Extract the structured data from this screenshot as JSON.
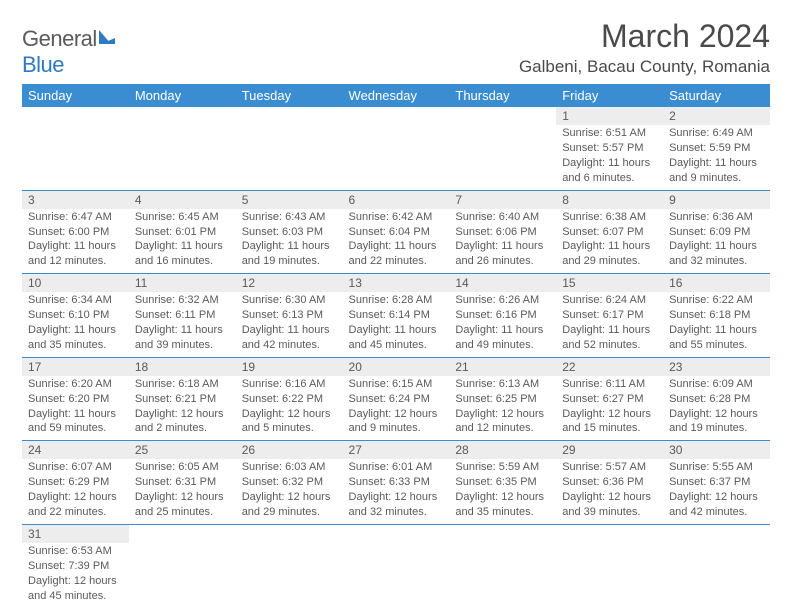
{
  "logo": {
    "text_a": "General",
    "text_b": "Blue"
  },
  "title": "March 2024",
  "location": "Galbeni, Bacau County, Romania",
  "colors": {
    "header_bg": "#3a8dd0",
    "header_fg": "#ffffff",
    "row_sep": "#3a8dd0",
    "daynum_bg": "#ededed",
    "text": "#5a5a5a"
  },
  "weekdays": [
    "Sunday",
    "Monday",
    "Tuesday",
    "Wednesday",
    "Thursday",
    "Friday",
    "Saturday"
  ],
  "weeks": [
    [
      null,
      null,
      null,
      null,
      null,
      {
        "n": "1",
        "sr": "Sunrise: 6:51 AM",
        "ss": "Sunset: 5:57 PM",
        "d1": "Daylight: 11 hours",
        "d2": "and 6 minutes."
      },
      {
        "n": "2",
        "sr": "Sunrise: 6:49 AM",
        "ss": "Sunset: 5:59 PM",
        "d1": "Daylight: 11 hours",
        "d2": "and 9 minutes."
      }
    ],
    [
      {
        "n": "3",
        "sr": "Sunrise: 6:47 AM",
        "ss": "Sunset: 6:00 PM",
        "d1": "Daylight: 11 hours",
        "d2": "and 12 minutes."
      },
      {
        "n": "4",
        "sr": "Sunrise: 6:45 AM",
        "ss": "Sunset: 6:01 PM",
        "d1": "Daylight: 11 hours",
        "d2": "and 16 minutes."
      },
      {
        "n": "5",
        "sr": "Sunrise: 6:43 AM",
        "ss": "Sunset: 6:03 PM",
        "d1": "Daylight: 11 hours",
        "d2": "and 19 minutes."
      },
      {
        "n": "6",
        "sr": "Sunrise: 6:42 AM",
        "ss": "Sunset: 6:04 PM",
        "d1": "Daylight: 11 hours",
        "d2": "and 22 minutes."
      },
      {
        "n": "7",
        "sr": "Sunrise: 6:40 AM",
        "ss": "Sunset: 6:06 PM",
        "d1": "Daylight: 11 hours",
        "d2": "and 26 minutes."
      },
      {
        "n": "8",
        "sr": "Sunrise: 6:38 AM",
        "ss": "Sunset: 6:07 PM",
        "d1": "Daylight: 11 hours",
        "d2": "and 29 minutes."
      },
      {
        "n": "9",
        "sr": "Sunrise: 6:36 AM",
        "ss": "Sunset: 6:09 PM",
        "d1": "Daylight: 11 hours",
        "d2": "and 32 minutes."
      }
    ],
    [
      {
        "n": "10",
        "sr": "Sunrise: 6:34 AM",
        "ss": "Sunset: 6:10 PM",
        "d1": "Daylight: 11 hours",
        "d2": "and 35 minutes."
      },
      {
        "n": "11",
        "sr": "Sunrise: 6:32 AM",
        "ss": "Sunset: 6:11 PM",
        "d1": "Daylight: 11 hours",
        "d2": "and 39 minutes."
      },
      {
        "n": "12",
        "sr": "Sunrise: 6:30 AM",
        "ss": "Sunset: 6:13 PM",
        "d1": "Daylight: 11 hours",
        "d2": "and 42 minutes."
      },
      {
        "n": "13",
        "sr": "Sunrise: 6:28 AM",
        "ss": "Sunset: 6:14 PM",
        "d1": "Daylight: 11 hours",
        "d2": "and 45 minutes."
      },
      {
        "n": "14",
        "sr": "Sunrise: 6:26 AM",
        "ss": "Sunset: 6:16 PM",
        "d1": "Daylight: 11 hours",
        "d2": "and 49 minutes."
      },
      {
        "n": "15",
        "sr": "Sunrise: 6:24 AM",
        "ss": "Sunset: 6:17 PM",
        "d1": "Daylight: 11 hours",
        "d2": "and 52 minutes."
      },
      {
        "n": "16",
        "sr": "Sunrise: 6:22 AM",
        "ss": "Sunset: 6:18 PM",
        "d1": "Daylight: 11 hours",
        "d2": "and 55 minutes."
      }
    ],
    [
      {
        "n": "17",
        "sr": "Sunrise: 6:20 AM",
        "ss": "Sunset: 6:20 PM",
        "d1": "Daylight: 11 hours",
        "d2": "and 59 minutes."
      },
      {
        "n": "18",
        "sr": "Sunrise: 6:18 AM",
        "ss": "Sunset: 6:21 PM",
        "d1": "Daylight: 12 hours",
        "d2": "and 2 minutes."
      },
      {
        "n": "19",
        "sr": "Sunrise: 6:16 AM",
        "ss": "Sunset: 6:22 PM",
        "d1": "Daylight: 12 hours",
        "d2": "and 5 minutes."
      },
      {
        "n": "20",
        "sr": "Sunrise: 6:15 AM",
        "ss": "Sunset: 6:24 PM",
        "d1": "Daylight: 12 hours",
        "d2": "and 9 minutes."
      },
      {
        "n": "21",
        "sr": "Sunrise: 6:13 AM",
        "ss": "Sunset: 6:25 PM",
        "d1": "Daylight: 12 hours",
        "d2": "and 12 minutes."
      },
      {
        "n": "22",
        "sr": "Sunrise: 6:11 AM",
        "ss": "Sunset: 6:27 PM",
        "d1": "Daylight: 12 hours",
        "d2": "and 15 minutes."
      },
      {
        "n": "23",
        "sr": "Sunrise: 6:09 AM",
        "ss": "Sunset: 6:28 PM",
        "d1": "Daylight: 12 hours",
        "d2": "and 19 minutes."
      }
    ],
    [
      {
        "n": "24",
        "sr": "Sunrise: 6:07 AM",
        "ss": "Sunset: 6:29 PM",
        "d1": "Daylight: 12 hours",
        "d2": "and 22 minutes."
      },
      {
        "n": "25",
        "sr": "Sunrise: 6:05 AM",
        "ss": "Sunset: 6:31 PM",
        "d1": "Daylight: 12 hours",
        "d2": "and 25 minutes."
      },
      {
        "n": "26",
        "sr": "Sunrise: 6:03 AM",
        "ss": "Sunset: 6:32 PM",
        "d1": "Daylight: 12 hours",
        "d2": "and 29 minutes."
      },
      {
        "n": "27",
        "sr": "Sunrise: 6:01 AM",
        "ss": "Sunset: 6:33 PM",
        "d1": "Daylight: 12 hours",
        "d2": "and 32 minutes."
      },
      {
        "n": "28",
        "sr": "Sunrise: 5:59 AM",
        "ss": "Sunset: 6:35 PM",
        "d1": "Daylight: 12 hours",
        "d2": "and 35 minutes."
      },
      {
        "n": "29",
        "sr": "Sunrise: 5:57 AM",
        "ss": "Sunset: 6:36 PM",
        "d1": "Daylight: 12 hours",
        "d2": "and 39 minutes."
      },
      {
        "n": "30",
        "sr": "Sunrise: 5:55 AM",
        "ss": "Sunset: 6:37 PM",
        "d1": "Daylight: 12 hours",
        "d2": "and 42 minutes."
      }
    ],
    [
      {
        "n": "31",
        "sr": "Sunrise: 6:53 AM",
        "ss": "Sunset: 7:39 PM",
        "d1": "Daylight: 12 hours",
        "d2": "and 45 minutes."
      },
      null,
      null,
      null,
      null,
      null,
      null
    ]
  ]
}
